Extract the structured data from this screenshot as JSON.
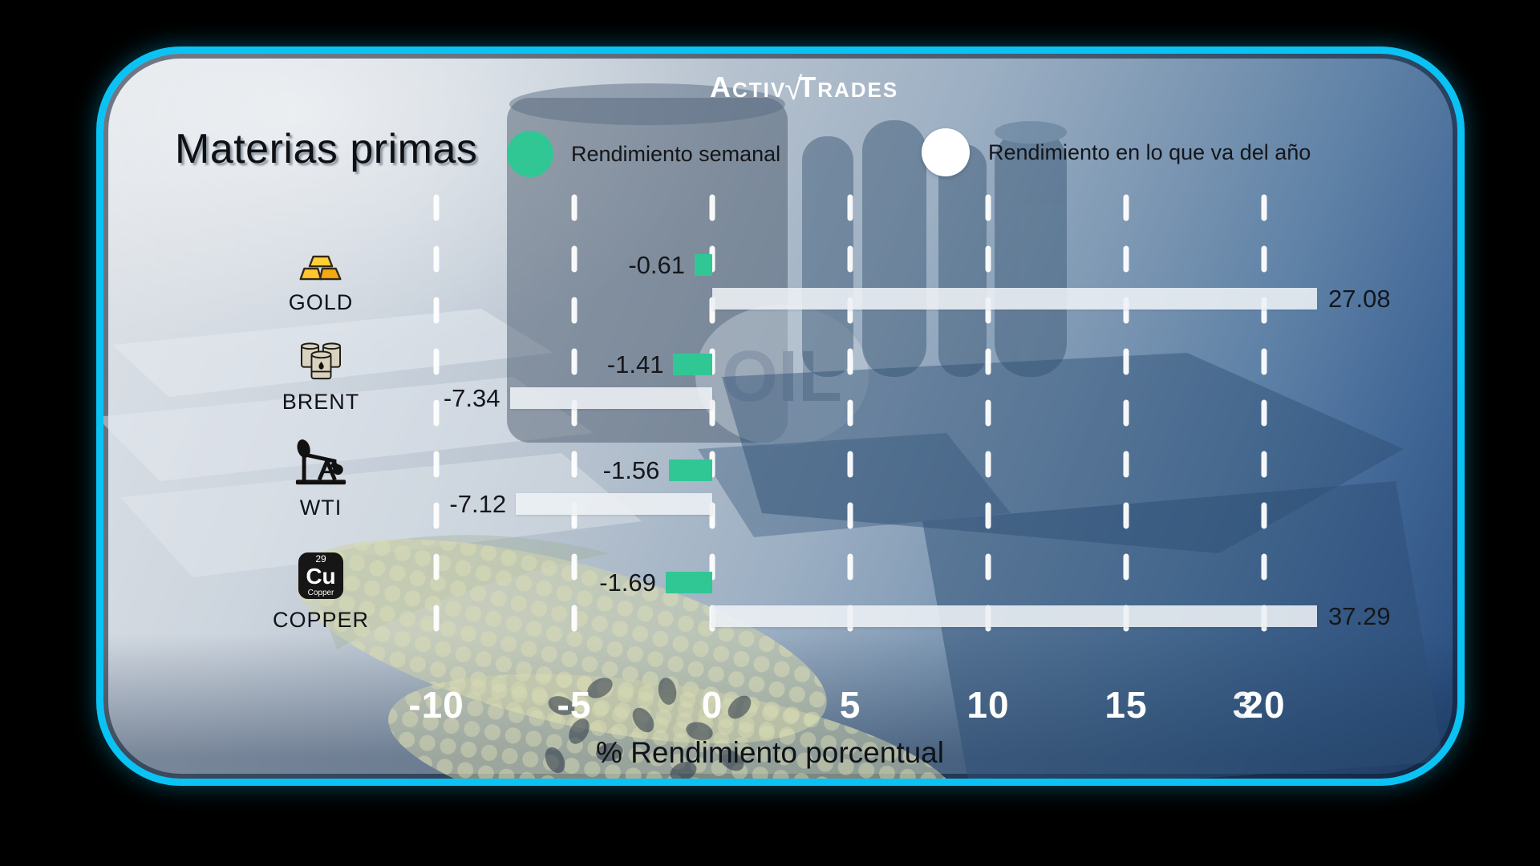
{
  "brand": {
    "name": "ActivTrades",
    "left_cap": "A",
    "left_rest": "CTIV",
    "check_mark": "√",
    "right_cap": "T",
    "right_rest": "RADES"
  },
  "header": {
    "title": "Materias primas"
  },
  "legend": {
    "weekly": {
      "label": "Rendimiento semanal",
      "color": "#31c795"
    },
    "ytd": {
      "label": "Rendimiento en lo que va del año",
      "color": "#ffffff"
    }
  },
  "rows": [
    {
      "category": "GOLD",
      "icon": "gold-bars-icon",
      "weekly": "-0.61",
      "ytd": "27.08"
    },
    {
      "category": "BRENT",
      "icon": "oil-barrels-icon",
      "weekly": "-1.41",
      "ytd": "-7.34"
    },
    {
      "category": "WTI",
      "icon": "oil-pumpjack-icon",
      "weekly": "-1.56",
      "ytd": "-7.12"
    },
    {
      "category": "COPPER",
      "icon": "copper-element-icon",
      "weekly": "-1.69",
      "ytd": "37.29",
      "element": {
        "number": "29",
        "symbol": "Cu",
        "name": "Copper"
      }
    }
  ],
  "axis": {
    "title": "% Rendimiento porcentual",
    "ticks": [
      "-10",
      "-5",
      "0",
      "5",
      "10",
      "15",
      "20"
    ],
    "overlap_tick": "3",
    "tick_color": "#ffffff"
  },
  "background": {
    "oil_text": "OIL",
    "card_border_color": "#0ac3f4"
  },
  "chart_data": {
    "type": "bar",
    "orientation": "horizontal",
    "title": "Materias primas",
    "categories": [
      "GOLD",
      "BRENT",
      "WTI",
      "COPPER"
    ],
    "series": [
      {
        "name": "Rendimiento semanal",
        "color": "#31c795",
        "values": [
          -0.61,
          -1.41,
          -1.56,
          -1.69
        ]
      },
      {
        "name": "Rendimiento en lo que va del año",
        "color": "#eef2f6",
        "values": [
          27.08,
          -7.34,
          -7.12,
          37.29
        ]
      }
    ],
    "xlabel": "% Rendimiento porcentual",
    "xticks": [
      -10,
      -5,
      0,
      5,
      10,
      15,
      20
    ],
    "xlim": [
      -12,
      22
    ],
    "grid": "vertical-dashed-white",
    "legend_position": "top",
    "value_labels": "outside-bar-ends"
  }
}
